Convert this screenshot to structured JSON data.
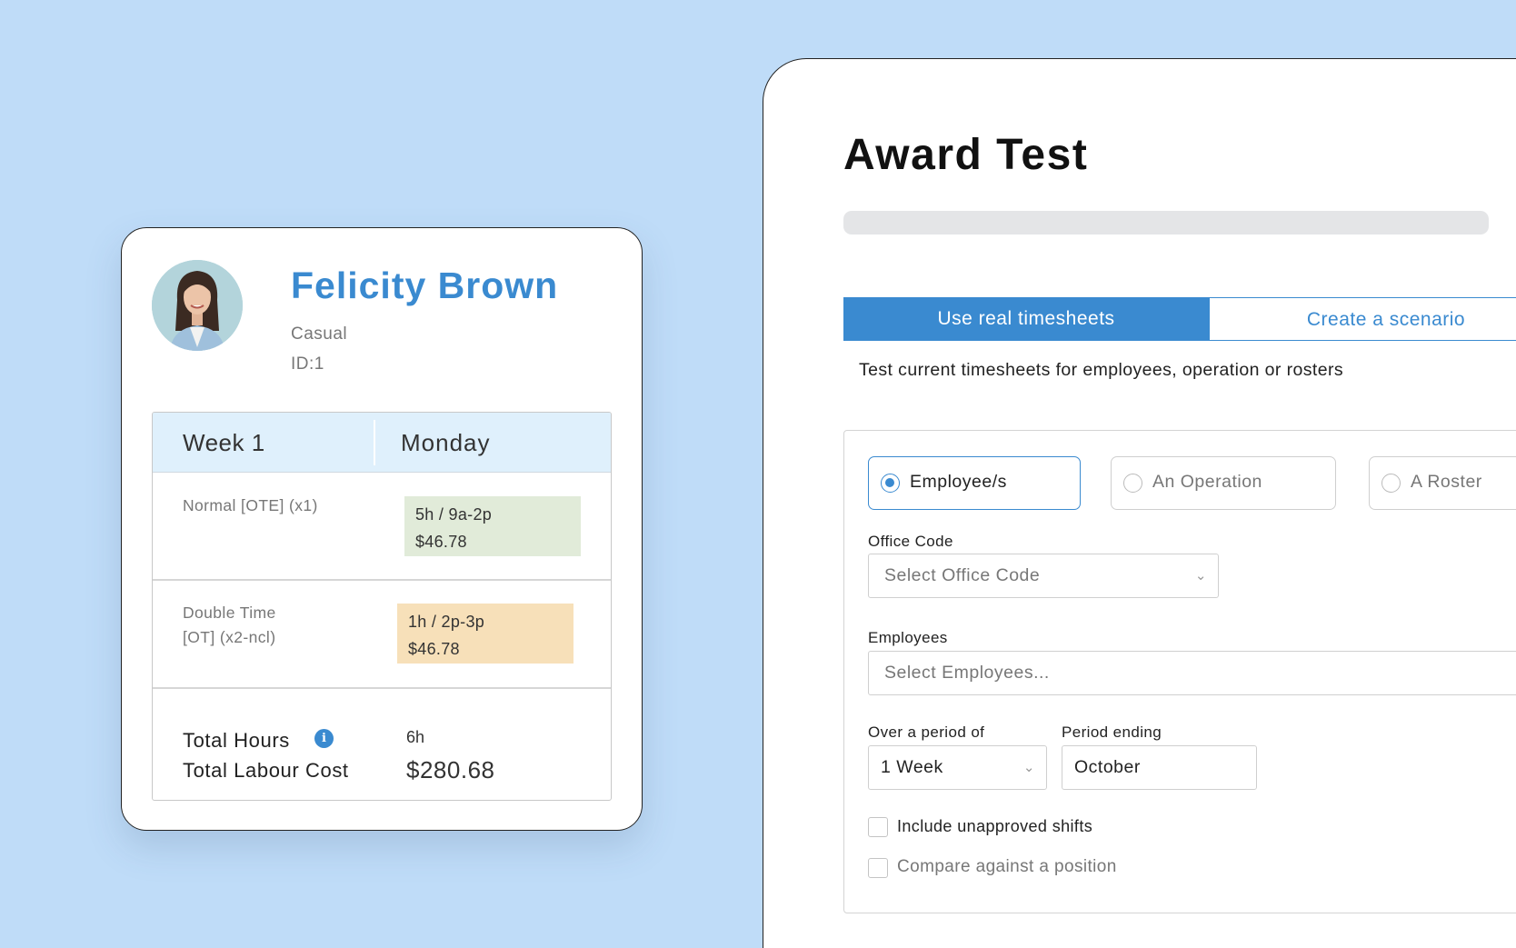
{
  "employee": {
    "name": "Felicity Brown",
    "type": "Casual",
    "id": "ID:1",
    "timesheet": {
      "week_label": "Week 1",
      "day_label": "Monday",
      "rows": [
        {
          "label_line1": "Normal [OTE] (x1)",
          "label_line2": "",
          "hours": "5h / 9a-2p",
          "cost": "$46.78",
          "color": "#e1ebd9"
        },
        {
          "label_line1": "Double Time",
          "label_line2": "[OT] (x2-ncl)",
          "hours": "1h / 2p-3p",
          "cost": "$46.78",
          "color": "#f7e0b9"
        }
      ],
      "total_hours_label": "Total Hours",
      "total_hours_value": "6h",
      "total_cost_label": "Total Labour Cost",
      "total_cost_value": "$280.68",
      "info_icon": "i"
    }
  },
  "award": {
    "title": "Award Test",
    "progress": 0,
    "tabs": [
      {
        "label": "Use real timesheets",
        "active": true
      },
      {
        "label": "Create a scenario",
        "active": false
      }
    ],
    "description": "Test current timesheets for employees, operation or rosters",
    "options": [
      {
        "label": "Employee/s",
        "selected": true
      },
      {
        "label": "An Operation",
        "selected": false
      },
      {
        "label": "A Roster",
        "selected": false
      }
    ],
    "office_code": {
      "label": "Office Code",
      "placeholder": "Select Office Code"
    },
    "employees": {
      "label": "Employees",
      "placeholder": "Select Employees..."
    },
    "period": {
      "label": "Over a period of",
      "value": "1 Week"
    },
    "period_ending": {
      "label": "Period ending",
      "value": "October"
    },
    "checkboxes": [
      {
        "label": "Include unapproved shifts",
        "checked": false
      },
      {
        "label": "Compare against a position",
        "checked": false
      }
    ]
  },
  "colors": {
    "accent": "#3a8ad0",
    "background": "#bfdcf8"
  }
}
